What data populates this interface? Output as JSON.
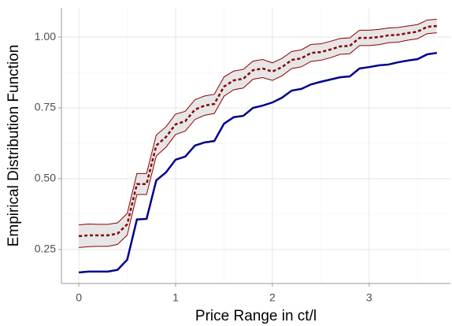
{
  "chart_data": {
    "type": "line",
    "xlabel": "Price Range in ct/l",
    "ylabel": "Empirical Distribution Function",
    "x": [
      0,
      0.1,
      0.2,
      0.3,
      0.4,
      0.5,
      0.6,
      0.7,
      0.8,
      0.9,
      1.0,
      1.1,
      1.2,
      1.3,
      1.4,
      1.5,
      1.6,
      1.7,
      1.8,
      1.9,
      2.0,
      2.1,
      2.2,
      2.3,
      2.4,
      2.5,
      2.6,
      2.7,
      2.8,
      2.9,
      3.0,
      3.1,
      3.2,
      3.3,
      3.4,
      3.5,
      3.6,
      3.7
    ],
    "series": [
      {
        "color": "#00008b",
        "values": [
          0.169,
          0.172,
          0.172,
          0.172,
          0.178,
          0.214,
          0.356,
          0.358,
          0.494,
          0.522,
          0.567,
          0.578,
          0.617,
          0.628,
          0.633,
          0.694,
          0.717,
          0.722,
          0.75,
          0.758,
          0.769,
          0.786,
          0.811,
          0.817,
          0.833,
          0.842,
          0.85,
          0.858,
          0.861,
          0.889,
          0.894,
          0.9,
          0.903,
          0.911,
          0.917,
          0.922,
          0.939,
          0.944
        ]
      },
      {
        "color": "#8b0000",
        "dashed": true,
        "band_fill": "#e6e6e6",
        "values": [
          0.297,
          0.3,
          0.3,
          0.3,
          0.306,
          0.339,
          0.481,
          0.481,
          0.617,
          0.647,
          0.692,
          0.703,
          0.744,
          0.758,
          0.764,
          0.825,
          0.847,
          0.853,
          0.883,
          0.889,
          0.878,
          0.894,
          0.919,
          0.925,
          0.944,
          0.947,
          0.956,
          0.967,
          0.969,
          0.997,
          0.997,
          1.0,
          1.006,
          1.008,
          1.014,
          1.019,
          1.036,
          1.039
        ],
        "upper": [
          0.337,
          0.34,
          0.339,
          0.339,
          0.344,
          0.377,
          0.518,
          0.518,
          0.654,
          0.683,
          0.728,
          0.738,
          0.779,
          0.792,
          0.798,
          0.859,
          0.88,
          0.886,
          0.915,
          0.921,
          0.909,
          0.925,
          0.949,
          0.955,
          0.974,
          0.976,
          0.985,
          0.995,
          0.997,
          1.024,
          1.024,
          1.027,
          1.032,
          1.034,
          1.039,
          1.044,
          1.06,
          1.063
        ],
        "lower": [
          0.257,
          0.26,
          0.261,
          0.261,
          0.268,
          0.301,
          0.444,
          0.444,
          0.58,
          0.611,
          0.656,
          0.668,
          0.709,
          0.724,
          0.73,
          0.791,
          0.814,
          0.82,
          0.851,
          0.857,
          0.847,
          0.863,
          0.889,
          0.895,
          0.914,
          0.918,
          0.927,
          0.939,
          0.941,
          0.97,
          0.97,
          0.973,
          0.98,
          0.982,
          0.989,
          0.994,
          1.012,
          1.015
        ]
      }
    ],
    "xlim": [
      -0.18,
      3.84
    ],
    "ylim": [
      0.13,
      1.103
    ],
    "xticks": [
      0,
      1,
      2,
      3
    ],
    "yticks": [
      {
        "value": 0.25,
        "label": "0.25"
      },
      {
        "value": 0.5,
        "label": "0.50"
      },
      {
        "value": 0.75,
        "label": "0.75"
      },
      {
        "value": 1,
        "label": "1.00"
      }
    ],
    "xminor": [
      0.5,
      1.5,
      2.5,
      3.5
    ],
    "yminor": [
      0.375,
      0.625,
      0.875
    ],
    "grid": true
  }
}
